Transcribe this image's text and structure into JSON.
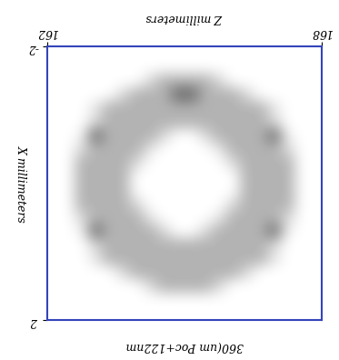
{
  "chart_data": {
    "type": "heatmap",
    "title": "360(um Poc+122nm",
    "x_label": "Z millimeters",
    "y_label": "X millimeters",
    "xlim": [
      162,
      168
    ],
    "xticks": [
      162,
      168
    ],
    "ylim": [
      2,
      -2
    ],
    "yticks": [
      -2,
      2
    ],
    "zlim": [
      0,
      1
    ],
    "color": "gray_r",
    "cells": [
      [
        0,
        0,
        0,
        0,
        0,
        0,
        0,
        0,
        0,
        0,
        0,
        0,
        0,
        0,
        0,
        0,
        0,
        0,
        0,
        0
      ],
      [
        0,
        0,
        0,
        0,
        0,
        0,
        0,
        0,
        0,
        0,
        0,
        0,
        0,
        0,
        0,
        0,
        0,
        0,
        0,
        0
      ],
      [
        0,
        0,
        0,
        0,
        0,
        0,
        0,
        0.15,
        0.3,
        0.3,
        0.3,
        0.3,
        0.15,
        0,
        0,
        0,
        0,
        0,
        0,
        0
      ],
      [
        0,
        0,
        0,
        0,
        0,
        0.15,
        0.3,
        0.3,
        0.3,
        0.3,
        0.3,
        0.3,
        0.3,
        0.3,
        0.15,
        0,
        0,
        0,
        0,
        0
      ],
      [
        0,
        0,
        0,
        0.1,
        0.3,
        0.3,
        0.3,
        0.3,
        0.3,
        0.3,
        0.3,
        0.3,
        0.3,
        0.3,
        0.3,
        0.3,
        0.1,
        0,
        0,
        0
      ],
      [
        0,
        0,
        0,
        0.15,
        0.3,
        0.3,
        0.3,
        0.3,
        0.3,
        0.3,
        0.3,
        0.3,
        0.3,
        0.3,
        0.3,
        0.3,
        0.15,
        0,
        0,
        0
      ],
      [
        0,
        0,
        0.05,
        0.6,
        0.3,
        0.3,
        0.3,
        0.3,
        0.15,
        0,
        0,
        0.15,
        0.3,
        0.3,
        0.3,
        0.3,
        0.6,
        0.05,
        0,
        0
      ],
      [
        0,
        0,
        0.15,
        0.3,
        0.3,
        0.3,
        0.3,
        0.1,
        0,
        0,
        0,
        0,
        0.1,
        0.3,
        0.3,
        0.3,
        0.3,
        0.15,
        0,
        0
      ],
      [
        0,
        0,
        0.3,
        0.3,
        0.3,
        0.3,
        0.15,
        0,
        0,
        0,
        0,
        0,
        0,
        0.15,
        0.3,
        0.3,
        0.3,
        0.3,
        0,
        0
      ],
      [
        0,
        0,
        0.3,
        0.3,
        0.3,
        0.3,
        0,
        0,
        0,
        0,
        0,
        0,
        0,
        0,
        0.3,
        0.3,
        0.3,
        0.3,
        0,
        0
      ],
      [
        0,
        0,
        0.3,
        0.3,
        0.3,
        0.3,
        0,
        0,
        0,
        0,
        0,
        0,
        0,
        0,
        0.3,
        0.3,
        0.3,
        0.3,
        0,
        0
      ],
      [
        0,
        0,
        0.3,
        0.3,
        0.3,
        0.3,
        0.15,
        0,
        0,
        0,
        0,
        0,
        0,
        0.15,
        0.3,
        0.3,
        0.3,
        0.3,
        0,
        0
      ],
      [
        0,
        0,
        0.15,
        0.3,
        0.3,
        0.3,
        0.3,
        0.1,
        0,
        0,
        0,
        0,
        0.1,
        0.3,
        0.3,
        0.3,
        0.3,
        0.15,
        0,
        0
      ],
      [
        0,
        0,
        0.05,
        0.6,
        0.3,
        0.3,
        0.3,
        0.3,
        0.15,
        0,
        0,
        0.15,
        0.3,
        0.3,
        0.3,
        0.3,
        0.6,
        0.05,
        0,
        0
      ],
      [
        0,
        0,
        0,
        0.15,
        0.3,
        0.3,
        0.3,
        0.3,
        0.3,
        0.3,
        0.3,
        0.3,
        0.3,
        0.3,
        0.3,
        0.3,
        0.15,
        0,
        0,
        0
      ],
      [
        0,
        0,
        0,
        0.1,
        0.3,
        0.3,
        0.3,
        0.3,
        0.3,
        0.3,
        0.3,
        0.3,
        0.3,
        0.3,
        0.3,
        0.3,
        0.1,
        0,
        0,
        0
      ],
      [
        0,
        0,
        0,
        0,
        0,
        0.15,
        0.3,
        0.3,
        0.3,
        0.6,
        0.6,
        0.3,
        0.3,
        0.3,
        0.15,
        0,
        0,
        0,
        0,
        0
      ],
      [
        0,
        0,
        0,
        0,
        0,
        0,
        0,
        0.15,
        0.3,
        0.3,
        0.3,
        0.3,
        0.15,
        0,
        0,
        0,
        0,
        0,
        0,
        0
      ],
      [
        0,
        0,
        0,
        0,
        0,
        0,
        0,
        0,
        0,
        0,
        0,
        0,
        0,
        0,
        0,
        0,
        0,
        0,
        0,
        0
      ],
      [
        0,
        0,
        0,
        0,
        0,
        0,
        0,
        0,
        0,
        0,
        0,
        0,
        0,
        0,
        0,
        0,
        0,
        0,
        0,
        0
      ]
    ]
  }
}
